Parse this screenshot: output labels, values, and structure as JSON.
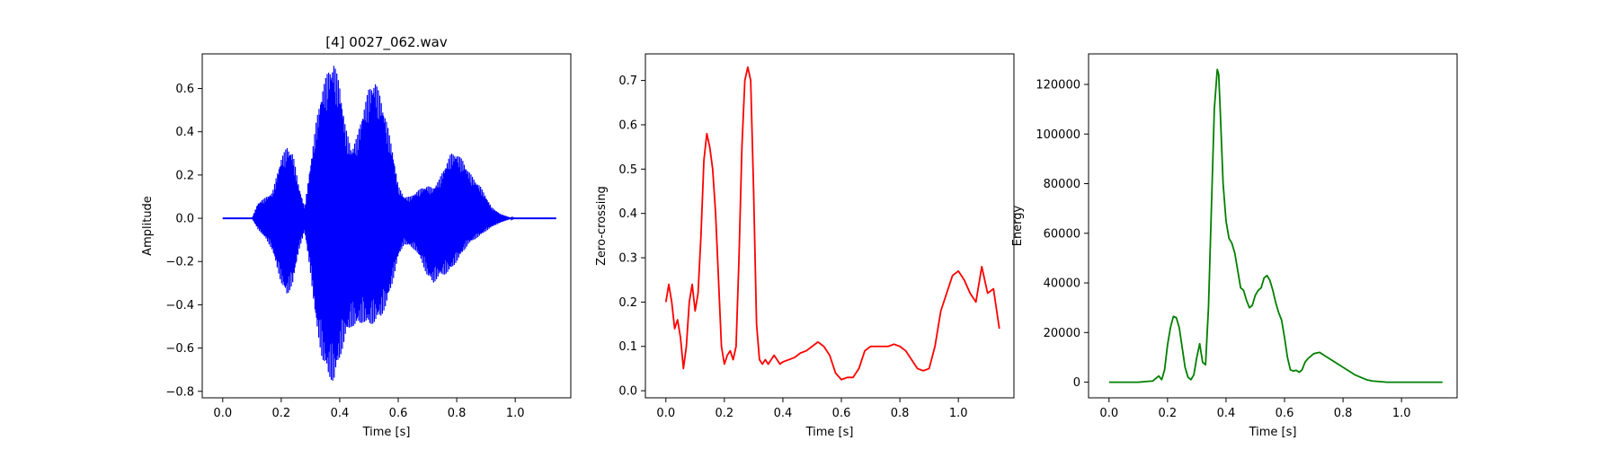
{
  "chart_data": [
    {
      "type": "line",
      "title": "[4] 0027_062.wav",
      "xlabel": "Time [s]",
      "ylabel": "Amplitude",
      "xlim": [
        -0.07,
        1.19
      ],
      "ylim": [
        -0.83,
        0.76
      ],
      "xticks": [
        "0.0",
        "0.2",
        "0.4",
        "0.6",
        "0.8",
        "1.0"
      ],
      "yticks": [
        "0.6",
        "0.4",
        "0.2",
        "0.0",
        "−0.2",
        "−0.4",
        "−0.6",
        "−0.8"
      ],
      "grid": false,
      "color": "#0000ff",
      "envelope": {
        "t": [
          0.0,
          0.1,
          0.12,
          0.15,
          0.17,
          0.2,
          0.22,
          0.24,
          0.26,
          0.28,
          0.3,
          0.32,
          0.34,
          0.36,
          0.38,
          0.4,
          0.42,
          0.44,
          0.46,
          0.48,
          0.5,
          0.52,
          0.54,
          0.56,
          0.58,
          0.6,
          0.62,
          0.64,
          0.66,
          0.68,
          0.7,
          0.72,
          0.74,
          0.76,
          0.78,
          0.8,
          0.82,
          0.84,
          0.86,
          0.88,
          0.9,
          0.92,
          0.95,
          0.98,
          1.0,
          1.14
        ],
        "pos": [
          0.0,
          0.0,
          0.07,
          0.1,
          0.12,
          0.28,
          0.33,
          0.3,
          0.15,
          0.05,
          0.25,
          0.45,
          0.6,
          0.68,
          0.72,
          0.62,
          0.42,
          0.32,
          0.38,
          0.5,
          0.6,
          0.64,
          0.56,
          0.45,
          0.32,
          0.15,
          0.1,
          0.1,
          0.12,
          0.14,
          0.15,
          0.14,
          0.18,
          0.24,
          0.3,
          0.3,
          0.27,
          0.22,
          0.18,
          0.15,
          0.1,
          0.05,
          0.02,
          0.005,
          0.0,
          0.0
        ],
        "neg": [
          0.0,
          0.0,
          -0.05,
          -0.1,
          -0.15,
          -0.3,
          -0.36,
          -0.3,
          -0.15,
          -0.06,
          -0.25,
          -0.5,
          -0.65,
          -0.73,
          -0.76,
          -0.65,
          -0.55,
          -0.5,
          -0.5,
          -0.48,
          -0.5,
          -0.48,
          -0.46,
          -0.4,
          -0.3,
          -0.18,
          -0.12,
          -0.13,
          -0.15,
          -0.2,
          -0.27,
          -0.3,
          -0.27,
          -0.26,
          -0.24,
          -0.2,
          -0.16,
          -0.12,
          -0.1,
          -0.08,
          -0.06,
          -0.04,
          -0.02,
          -0.005,
          0.0,
          0.0
        ]
      }
    },
    {
      "type": "line",
      "title": "",
      "xlabel": "Time [s]",
      "ylabel": "Zero-crossing",
      "xlim": [
        -0.07,
        1.19
      ],
      "ylim": [
        -0.016,
        0.76
      ],
      "xticks": [
        "0.0",
        "0.2",
        "0.4",
        "0.6",
        "0.8",
        "1.0"
      ],
      "yticks": [
        "0.7",
        "0.6",
        "0.5",
        "0.4",
        "0.3",
        "0.2",
        "0.1",
        "0.0"
      ],
      "grid": false,
      "color": "#ff0000",
      "x": [
        0.0,
        0.01,
        0.02,
        0.03,
        0.04,
        0.05,
        0.06,
        0.07,
        0.08,
        0.09,
        0.1,
        0.11,
        0.12,
        0.13,
        0.14,
        0.15,
        0.16,
        0.17,
        0.18,
        0.19,
        0.2,
        0.21,
        0.22,
        0.23,
        0.24,
        0.25,
        0.26,
        0.27,
        0.28,
        0.29,
        0.3,
        0.31,
        0.32,
        0.33,
        0.34,
        0.35,
        0.36,
        0.37,
        0.38,
        0.39,
        0.4,
        0.42,
        0.44,
        0.46,
        0.48,
        0.5,
        0.52,
        0.54,
        0.56,
        0.58,
        0.6,
        0.62,
        0.64,
        0.66,
        0.68,
        0.7,
        0.72,
        0.74,
        0.76,
        0.78,
        0.8,
        0.82,
        0.84,
        0.86,
        0.88,
        0.9,
        0.92,
        0.94,
        0.96,
        0.98,
        1.0,
        1.02,
        1.04,
        1.06,
        1.08,
        1.1,
        1.12,
        1.14
      ],
      "y": [
        0.2,
        0.24,
        0.2,
        0.14,
        0.16,
        0.12,
        0.05,
        0.1,
        0.2,
        0.24,
        0.18,
        0.22,
        0.35,
        0.52,
        0.58,
        0.55,
        0.5,
        0.4,
        0.25,
        0.1,
        0.06,
        0.08,
        0.09,
        0.07,
        0.1,
        0.3,
        0.55,
        0.7,
        0.73,
        0.7,
        0.45,
        0.15,
        0.07,
        0.06,
        0.07,
        0.06,
        0.07,
        0.08,
        0.07,
        0.06,
        0.065,
        0.07,
        0.075,
        0.085,
        0.09,
        0.1,
        0.11,
        0.1,
        0.08,
        0.04,
        0.025,
        0.03,
        0.03,
        0.05,
        0.09,
        0.1,
        0.1,
        0.1,
        0.1,
        0.105,
        0.1,
        0.09,
        0.07,
        0.05,
        0.045,
        0.05,
        0.1,
        0.18,
        0.22,
        0.26,
        0.27,
        0.25,
        0.22,
        0.2,
        0.28,
        0.22,
        0.23,
        0.14
      ]
    },
    {
      "type": "line",
      "title": "",
      "xlabel": "Time [s]",
      "ylabel": "Energy",
      "xlim": [
        -0.07,
        1.19
      ],
      "ylim": [
        -6300,
        132300
      ],
      "xticks": [
        "0.0",
        "0.2",
        "0.4",
        "0.6",
        "0.8",
        "1.0"
      ],
      "yticks": [
        "120000",
        "100000",
        "80000",
        "60000",
        "40000",
        "20000",
        "0"
      ],
      "grid": false,
      "color": "#008000",
      "x": [
        0.0,
        0.1,
        0.15,
        0.17,
        0.18,
        0.19,
        0.2,
        0.21,
        0.22,
        0.23,
        0.24,
        0.25,
        0.26,
        0.27,
        0.28,
        0.29,
        0.3,
        0.31,
        0.32,
        0.33,
        0.34,
        0.35,
        0.36,
        0.37,
        0.375,
        0.38,
        0.39,
        0.4,
        0.41,
        0.42,
        0.43,
        0.44,
        0.45,
        0.46,
        0.47,
        0.48,
        0.49,
        0.5,
        0.51,
        0.52,
        0.53,
        0.54,
        0.55,
        0.56,
        0.57,
        0.58,
        0.59,
        0.6,
        0.61,
        0.62,
        0.63,
        0.64,
        0.65,
        0.66,
        0.67,
        0.68,
        0.7,
        0.72,
        0.74,
        0.76,
        0.78,
        0.8,
        0.82,
        0.84,
        0.86,
        0.88,
        0.9,
        0.95,
        1.0,
        1.14
      ],
      "y": [
        0,
        0,
        500,
        2500,
        1000,
        5000,
        15000,
        22000,
        26500,
        26000,
        22000,
        14000,
        6000,
        2000,
        1000,
        3000,
        10000,
        15500,
        8000,
        7000,
        30000,
        70000,
        110000,
        126000,
        124000,
        110000,
        80000,
        65000,
        58000,
        56000,
        52000,
        45000,
        38000,
        37000,
        33000,
        30000,
        31000,
        35000,
        37000,
        38000,
        42000,
        43000,
        41000,
        37000,
        32000,
        28000,
        25000,
        18000,
        10000,
        5000,
        4500,
        4800,
        4000,
        5000,
        8000,
        9500,
        11500,
        12000,
        10500,
        9000,
        7500,
        6000,
        4500,
        3000,
        2000,
        1000,
        500,
        0,
        0,
        0
      ]
    }
  ]
}
